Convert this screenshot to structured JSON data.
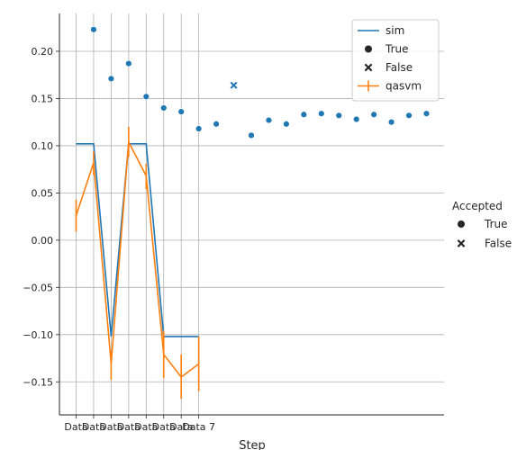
{
  "chart_data": {
    "type": "line",
    "xlabel": "Step",
    "ylabel": "",
    "ylim": [
      -0.185,
      0.24
    ],
    "yticks": [
      -0.15,
      -0.1,
      -0.05,
      0.0,
      0.05,
      0.1,
      0.15,
      0.2
    ],
    "ytick_labels": [
      "−0.15",
      "−0.10",
      "−0.05",
      "0.00",
      "0.05",
      "0.10",
      "0.15",
      "0.20"
    ],
    "xtick_labels": [
      "Data 0",
      "Data 1",
      "Data 2",
      "Data 3",
      "Data 4",
      "Data 5",
      "Data 6",
      "Data 7"
    ],
    "xtick_display": [
      "Data",
      "Data",
      "Data",
      "Data",
      "Data",
      "Data",
      "Data",
      "Data 7"
    ],
    "grid": true,
    "lines": [
      {
        "name": "sim",
        "color": "#1f77b4",
        "step": true,
        "values": [
          0.102,
          0.102,
          -0.102,
          0.102,
          0.102,
          -0.102,
          -0.102,
          -0.102
        ]
      },
      {
        "name": "qasvm",
        "color": "#ff7f0e",
        "values": [
          0.026,
          0.082,
          -0.131,
          0.104,
          0.068,
          -0.121,
          -0.145,
          -0.131
        ],
        "err_low": [
          0.009,
          0.069,
          -0.148,
          0.088,
          0.054,
          -0.146,
          -0.168,
          -0.16
        ],
        "err_high": [
          0.043,
          0.094,
          -0.117,
          0.12,
          0.081,
          -0.096,
          -0.121,
          -0.102
        ]
      }
    ],
    "scatter": {
      "name": "Accepted",
      "color": "#1f77b4",
      "points": [
        {
          "x": 1,
          "y": 0.223,
          "accepted": "True"
        },
        {
          "x": 2,
          "y": 0.171,
          "accepted": "True"
        },
        {
          "x": 3,
          "y": 0.187,
          "accepted": "True"
        },
        {
          "x": 4,
          "y": 0.152,
          "accepted": "True"
        },
        {
          "x": 5,
          "y": 0.14,
          "accepted": "True"
        },
        {
          "x": 6,
          "y": 0.136,
          "accepted": "True"
        },
        {
          "x": 7,
          "y": 0.118,
          "accepted": "True"
        },
        {
          "x": 8,
          "y": 0.123,
          "accepted": "True"
        },
        {
          "x": 9,
          "y": 0.164,
          "accepted": "False"
        },
        {
          "x": 10,
          "y": 0.111,
          "accepted": "True"
        },
        {
          "x": 11,
          "y": 0.127,
          "accepted": "True"
        },
        {
          "x": 12,
          "y": 0.123,
          "accepted": "True"
        },
        {
          "x": 13,
          "y": 0.133,
          "accepted": "True"
        },
        {
          "x": 14,
          "y": 0.134,
          "accepted": "True"
        },
        {
          "x": 15,
          "y": 0.132,
          "accepted": "True"
        },
        {
          "x": 16,
          "y": 0.128,
          "accepted": "True"
        },
        {
          "x": 17,
          "y": 0.133,
          "accepted": "True"
        },
        {
          "x": 18,
          "y": 0.125,
          "accepted": "True"
        },
        {
          "x": 19,
          "y": 0.132,
          "accepted": "True"
        },
        {
          "x": 20,
          "y": 0.134,
          "accepted": "True"
        }
      ]
    },
    "inner_legend": {
      "placement": "top-right",
      "entries": [
        {
          "label": "sim",
          "kind": "line",
          "color": "#1f77b4"
        },
        {
          "label": "True",
          "kind": "circle",
          "color": "#262626"
        },
        {
          "label": "False",
          "kind": "cross",
          "color": "#262626"
        },
        {
          "label": "qasvm",
          "kind": "errline",
          "color": "#ff7f0e"
        }
      ]
    },
    "outer_legend": {
      "placement": "right",
      "title": "Accepted",
      "entries": [
        {
          "label": "True",
          "kind": "circle"
        },
        {
          "label": "False",
          "kind": "cross"
        }
      ]
    }
  }
}
